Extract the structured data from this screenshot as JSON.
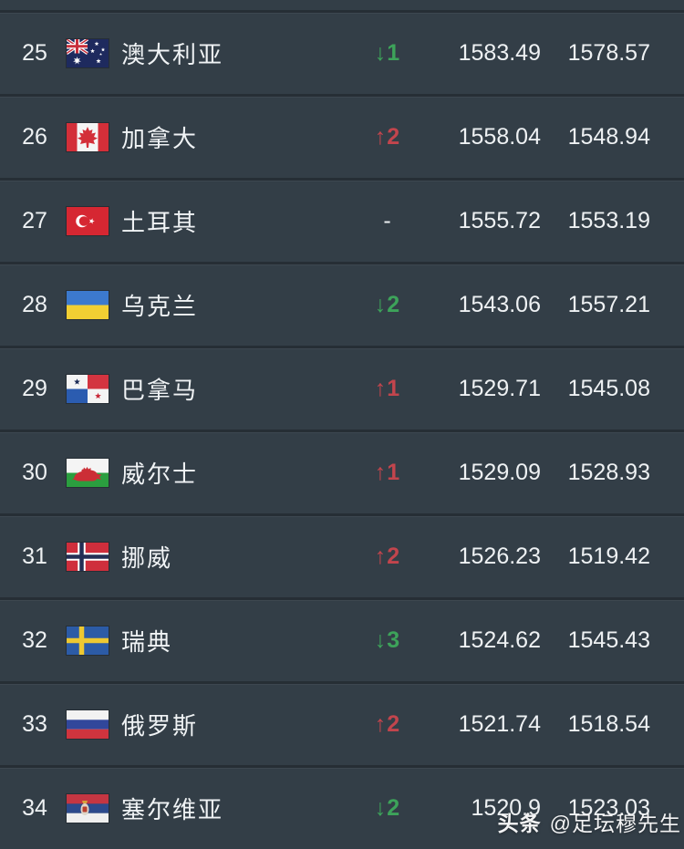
{
  "page": {
    "background": "#333e47",
    "row_separator": "#262e35",
    "text_color": "#eef1f3"
  },
  "colors": {
    "up": "#c2454d",
    "down": "#3da35a",
    "neutral": "#eef1f3"
  },
  "icons": {
    "up_arrow": "↑",
    "down_arrow": "↓"
  },
  "table": {
    "rows": [
      {
        "rank": "25",
        "flag": "australia",
        "country": "澳大利亚",
        "change_dir": "down",
        "change": "1",
        "points": "1583.49",
        "prev_points": "1578.57"
      },
      {
        "rank": "26",
        "flag": "canada",
        "country": "加拿大",
        "change_dir": "up",
        "change": "2",
        "points": "1558.04",
        "prev_points": "1548.94"
      },
      {
        "rank": "27",
        "flag": "turkey",
        "country": "土耳其",
        "change_dir": "none",
        "change": "-",
        "points": "1555.72",
        "prev_points": "1553.19"
      },
      {
        "rank": "28",
        "flag": "ukraine",
        "country": "乌克兰",
        "change_dir": "down",
        "change": "2",
        "points": "1543.06",
        "prev_points": "1557.21"
      },
      {
        "rank": "29",
        "flag": "panama",
        "country": "巴拿马",
        "change_dir": "up",
        "change": "1",
        "points": "1529.71",
        "prev_points": "1545.08"
      },
      {
        "rank": "30",
        "flag": "wales",
        "country": "威尔士",
        "change_dir": "up",
        "change": "1",
        "points": "1529.09",
        "prev_points": "1528.93"
      },
      {
        "rank": "31",
        "flag": "norway",
        "country": "挪威",
        "change_dir": "up",
        "change": "2",
        "points": "1526.23",
        "prev_points": "1519.42"
      },
      {
        "rank": "32",
        "flag": "sweden",
        "country": "瑞典",
        "change_dir": "down",
        "change": "3",
        "points": "1524.62",
        "prev_points": "1545.43"
      },
      {
        "rank": "33",
        "flag": "russia",
        "country": "俄罗斯",
        "change_dir": "up",
        "change": "2",
        "points": "1521.74",
        "prev_points": "1518.54"
      },
      {
        "rank": "34",
        "flag": "serbia",
        "country": "塞尔维亚",
        "change_dir": "down",
        "change": "2",
        "points": "1520.9",
        "prev_points": "1523.03"
      }
    ]
  },
  "watermark": {
    "brand": "头条",
    "handle": "@足坛穆先生"
  }
}
